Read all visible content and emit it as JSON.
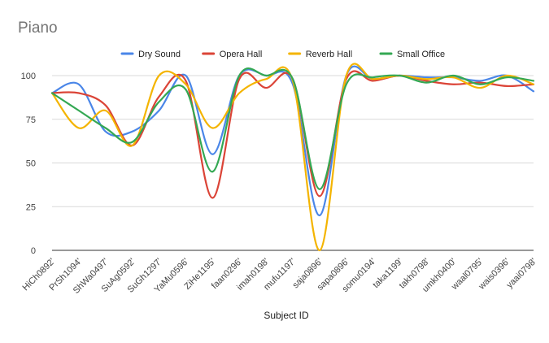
{
  "chart_data": {
    "type": "line",
    "title": "Piano",
    "xlabel": "Subject ID",
    "ylabel": "",
    "ylim": [
      0,
      100
    ],
    "yticks": [
      0,
      25,
      50,
      75,
      100
    ],
    "grid": true,
    "legend_position": "top",
    "smooth": true,
    "categories": [
      "HiCh0892'",
      "PrSh1094'",
      "ShWa0497'",
      "SuAg0592'",
      "SuGh1297'",
      "YaMu0596'",
      "ZiHe1195'",
      "faan0296'",
      "imah0198'",
      "mufu1197'",
      "saja0896'",
      "sapa0896'",
      "somu0194'",
      "taka1199'",
      "takh0798'",
      "umkh0400'",
      "waal0795'",
      "wais0396'",
      "yaai0798'"
    ],
    "series": [
      {
        "name": "Dry Sound",
        "color": "#4a86e8",
        "values": [
          90,
          95,
          68,
          68,
          80,
          100,
          55,
          100,
          100,
          95,
          20,
          100,
          98,
          100,
          99,
          99,
          97,
          100,
          91
        ]
      },
      {
        "name": "Opera Hall",
        "color": "#db4437",
        "values": [
          90,
          90,
          83,
          60,
          88,
          97,
          30,
          98,
          93,
          98,
          31,
          98,
          97,
          100,
          97,
          95,
          96,
          94,
          95
        ]
      },
      {
        "name": "Reverb Hall",
        "color": "#f4b400",
        "values": [
          90,
          70,
          80,
          60,
          100,
          95,
          70,
          90,
          98,
          97,
          0,
          100,
          98,
          100,
          98,
          99,
          93,
          100,
          95
        ]
      },
      {
        "name": "Small Office",
        "color": "#34a853",
        "values": [
          90,
          80,
          70,
          62,
          85,
          92,
          45,
          100,
          100,
          98,
          35,
          95,
          99,
          100,
          96,
          100,
          95,
          99,
          97
        ]
      }
    ]
  }
}
